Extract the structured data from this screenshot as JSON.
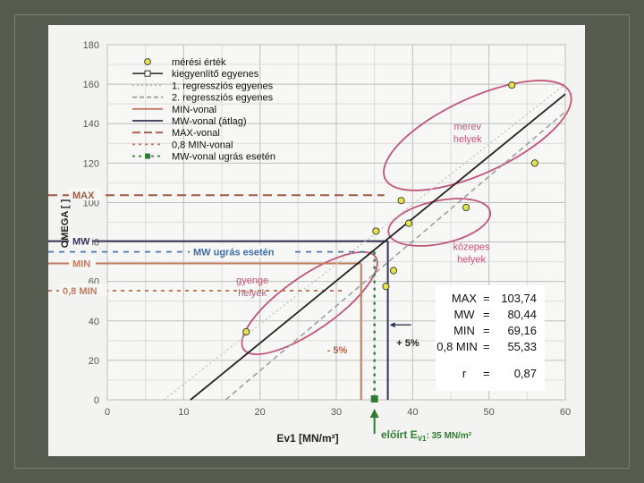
{
  "chart_data": {
    "type": "scatter",
    "xlabel": "Ev1  [MN/m²]",
    "ylabel": "OMEGA  [ ]",
    "xlim": [
      0,
      60
    ],
    "ylim": [
      0,
      180
    ],
    "x_ticks": [
      "0",
      "10",
      "20",
      "30",
      "40",
      "50",
      "60"
    ],
    "y_ticks": [
      "0",
      "20",
      "40",
      "60",
      "80",
      "100",
      "120",
      "140",
      "160",
      "180"
    ],
    "grid": true,
    "legend_position": "top-left",
    "points": [
      {
        "x": 18.2,
        "y": 34.5
      },
      {
        "x": 35.2,
        "y": 85.5
      },
      {
        "x": 36.5,
        "y": 57.5
      },
      {
        "x": 37.5,
        "y": 65.5
      },
      {
        "x": 38.5,
        "y": 101
      },
      {
        "x": 39.5,
        "y": 89.5
      },
      {
        "x": 47.0,
        "y": 97.5
      },
      {
        "x": 53.0,
        "y": 159.5
      },
      {
        "x": 56.0,
        "y": 120
      }
    ],
    "lines": [
      {
        "name": "kiegyenlítő egyenes",
        "style": "main",
        "color": "#222222",
        "x": [
          10.9,
          60
        ],
        "y": [
          0,
          155
        ]
      },
      {
        "name": "1. regressziós egyenes",
        "style": "reg1",
        "color": "#c8c8c8",
        "x": [
          7.4,
          60
        ],
        "y": [
          0,
          160
        ]
      },
      {
        "name": "2. regressziós egyenes",
        "style": "reg2",
        "color": "#9a9a9a",
        "x": [
          15.5,
          60
        ],
        "y": [
          0,
          146
        ]
      }
    ],
    "legend": [
      {
        "label": "mérési érték",
        "kind": "marker"
      },
      {
        "label": "kiegyenlítő egyenes",
        "kind": "solid-square",
        "color": "#333333"
      },
      {
        "label": "1. regressziós egyenes",
        "kind": "dotted",
        "color": "#bdbdbd"
      },
      {
        "label": "2. regressziós egyenes",
        "kind": "dashed",
        "color": "#9a9a9a"
      },
      {
        "label": "MIN-vonal",
        "kind": "solid",
        "color": "#c07a5e"
      },
      {
        "label": "MW-vonal (átlag)",
        "kind": "solid",
        "color": "#333355"
      },
      {
        "label": "MAX-vonal",
        "kind": "dash-long",
        "color": "#a05a40"
      },
      {
        "label": "0,8 MIN-vonal",
        "kind": "dash-short",
        "color": "#c07a5e"
      },
      {
        "label": "MW-vonal ugrás esetén",
        "kind": "dash-green",
        "color": "#2e7d32"
      }
    ],
    "ref_lines": {
      "max": {
        "label": "MAX",
        "y": 103.74,
        "color": "#a05a40"
      },
      "mw": {
        "label": "MW",
        "y": 80.44,
        "color": "#333355"
      },
      "min": {
        "label": "MIN",
        "y": 69.16,
        "color": "#c07a5e"
      },
      "min08": {
        "label": "0,8 MIN",
        "y": 55.33,
        "color": "#c07a5e"
      },
      "mwjump": {
        "label": "MW ugrás esetén",
        "y": 75,
        "color": "#3a6ea8"
      }
    },
    "vlines": {
      "minus5": 33.25,
      "req": 35,
      "plus5": 36.75
    },
    "annotations": {
      "minus5": "- 5%",
      "plus5": "+ 5%",
      "eloirt_prefix": "előírt E",
      "eloirt_sub": "V1",
      "eloirt_value": ": 35 MN/m²"
    },
    "regions": [
      {
        "label_lines": [
          "merev",
          "helyek"
        ],
        "color": "#c2557a"
      },
      {
        "label_lines": [
          "közepes",
          "helyek"
        ],
        "color": "#c2557a"
      },
      {
        "label_lines": [
          "gyenge",
          "helyek"
        ],
        "color": "#c2557a"
      }
    ],
    "stats": [
      {
        "label": "MAX",
        "value": "103,74"
      },
      {
        "label": "MW",
        "value": "80,44"
      },
      {
        "label": "MIN",
        "value": "69,16"
      },
      {
        "label": "0,8 MIN",
        "value": "55,33"
      },
      {
        "label": "r",
        "value": "0,87"
      }
    ]
  }
}
